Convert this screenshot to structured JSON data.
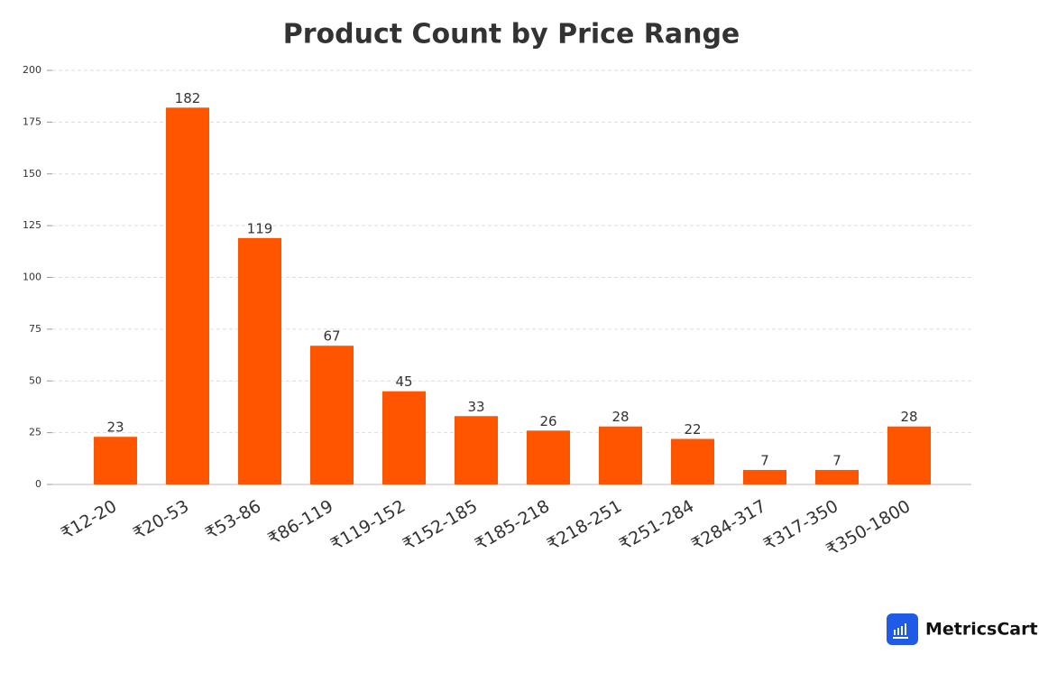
{
  "chart_data": {
    "type": "bar",
    "title": "Product Count by Price Range",
    "categories": [
      "₹12-20",
      "₹20-53",
      "₹53-86",
      "₹86-119",
      "₹119-152",
      "₹152-185",
      "₹185-218",
      "₹218-251",
      "₹251-284",
      "₹284-317",
      "₹317-350",
      "₹350-1800"
    ],
    "values": [
      23,
      182,
      119,
      67,
      45,
      33,
      26,
      28,
      22,
      7,
      7,
      28
    ],
    "color": "#ff5400",
    "ylim": [
      0,
      200
    ],
    "yticks": [
      0,
      25,
      50,
      75,
      100,
      125,
      150,
      175,
      200
    ],
    "grid": true
  },
  "branding": {
    "name": "MetricsCart"
  }
}
